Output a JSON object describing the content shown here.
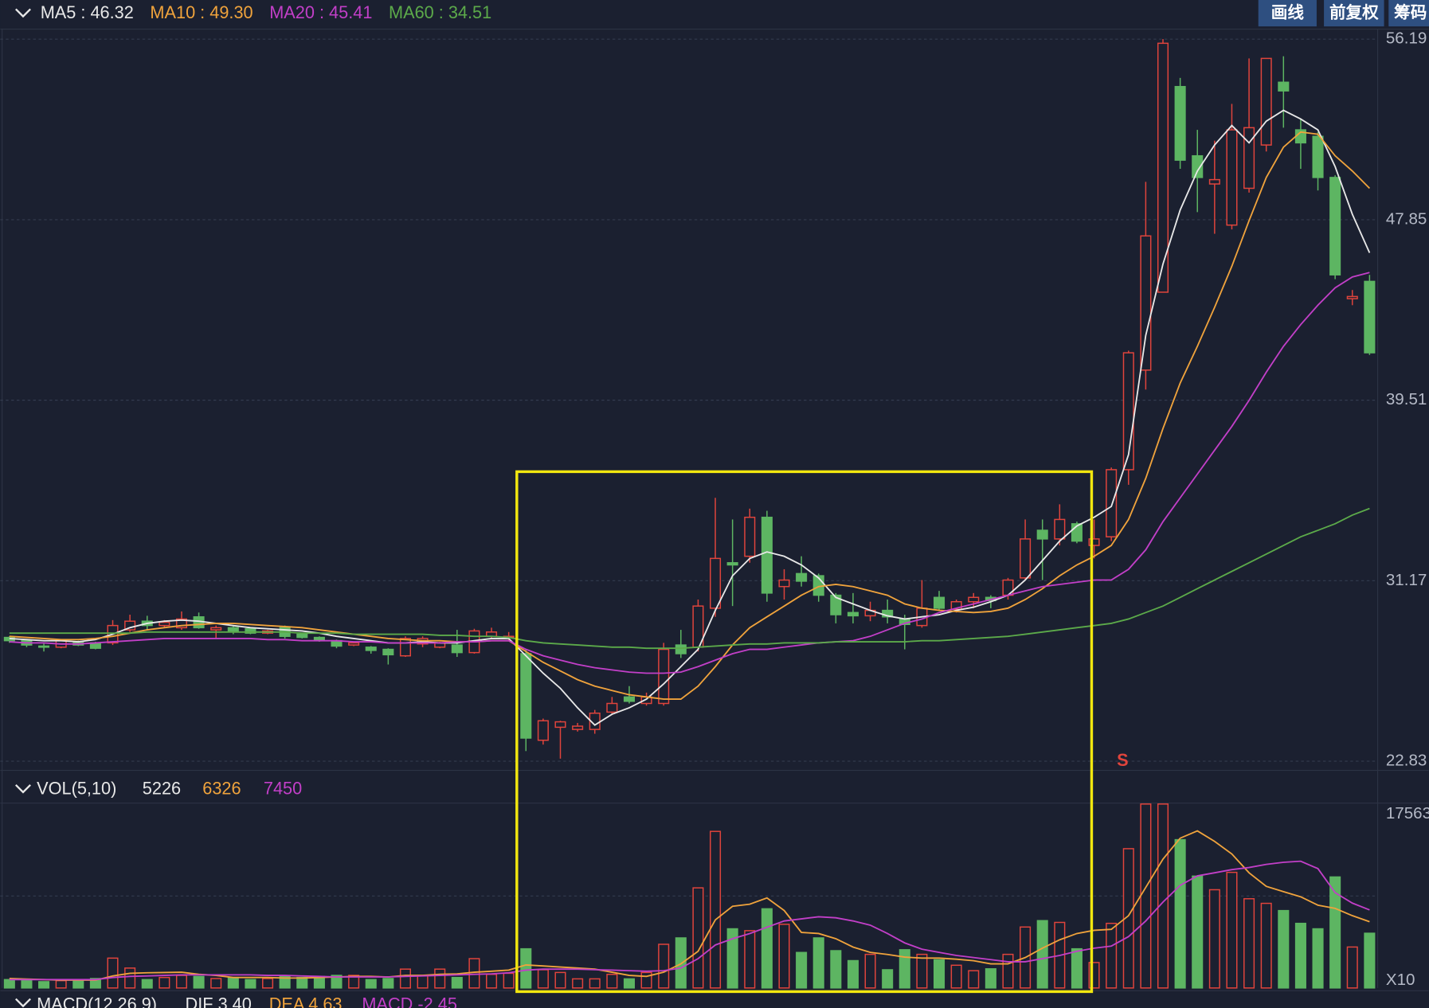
{
  "chart_data": [
    {
      "type": "candlestick",
      "open": [
        28.55,
        28.4,
        28.15,
        28.1,
        28.35,
        28.3,
        28.3,
        28.9,
        29.3,
        29.1,
        29.0,
        29.5,
        28.9,
        29.0,
        28.95,
        28.75,
        29.0,
        28.7,
        28.55,
        28.4,
        28.2,
        28.1,
        28.0,
        27.7,
        28.25,
        28.1,
        28.2,
        27.85,
        28.6,
        28.55,
        27.8,
        23.8,
        24.4,
        24.3,
        24.3,
        25.1,
        25.8,
        25.5,
        25.5,
        28.2,
        28.1,
        29.9,
        32.0,
        32.3,
        34.1,
        30.9,
        31.5,
        31.4,
        30.5,
        29.7,
        29.55,
        29.8,
        29.4,
        29.1,
        30.4,
        29.85,
        30.2,
        30.4,
        30.5,
        31.3,
        33.5,
        33.1,
        33.8,
        32.8,
        33.2,
        36.3,
        40.9,
        44.5,
        54.0,
        50.8,
        49.5,
        47.6,
        49.3,
        51.3,
        54.2,
        52.0,
        51.7,
        49.8,
        44.2,
        45.0
      ],
      "high": [
        28.6,
        28.45,
        28.3,
        28.45,
        28.4,
        28.35,
        29.35,
        29.6,
        29.55,
        29.35,
        29.75,
        29.7,
        29.1,
        29.1,
        29.0,
        28.9,
        29.1,
        28.75,
        28.6,
        28.45,
        28.35,
        28.15,
        28.05,
        28.6,
        28.6,
        28.35,
        28.9,
        28.95,
        29.0,
        28.8,
        28.0,
        24.8,
        24.7,
        24.6,
        25.2,
        25.8,
        26.3,
        26.0,
        28.3,
        28.9,
        30.3,
        35.0,
        34.0,
        34.5,
        34.4,
        31.7,
        32.3,
        31.5,
        30.6,
        30.6,
        30.2,
        30.3,
        29.6,
        31.2,
        30.7,
        30.3,
        30.6,
        30.5,
        31.3,
        34.0,
        34.0,
        34.7,
        33.9,
        34.0,
        36.4,
        41.8,
        49.6,
        56.19,
        54.4,
        52.0,
        51.5,
        53.2,
        55.3,
        55.3,
        55.4,
        52.5,
        51.9,
        49.9,
        44.6,
        45.3
      ],
      "low": [
        28.3,
        28.1,
        27.9,
        28.05,
        28.15,
        28.0,
        28.2,
        28.8,
        28.9,
        29.0,
        28.9,
        28.95,
        28.5,
        28.7,
        28.7,
        28.7,
        28.5,
        28.5,
        28.35,
        28.05,
        28.15,
        27.8,
        27.3,
        27.65,
        28.1,
        28.05,
        27.65,
        27.8,
        28.5,
        28.4,
        23.3,
        23.6,
        22.95,
        24.2,
        24.1,
        25.0,
        25.5,
        25.4,
        25.4,
        27.6,
        27.9,
        29.5,
        30.0,
        32.0,
        30.2,
        30.3,
        30.9,
        30.2,
        29.2,
        29.2,
        29.3,
        29.2,
        28.0,
        29.0,
        29.8,
        29.7,
        29.9,
        29.9,
        30.3,
        31.2,
        31.2,
        32.8,
        32.9,
        32.2,
        33.0,
        35.6,
        40.0,
        44.5,
        50.2,
        48.2,
        47.2,
        47.4,
        49.1,
        51.0,
        52.1,
        50.2,
        49.2,
        45.1,
        43.9,
        41.6
      ],
      "close": [
        28.4,
        28.2,
        28.12,
        28.4,
        28.2,
        28.05,
        29.1,
        29.3,
        29.1,
        29.25,
        29.4,
        29.0,
        29.0,
        28.85,
        28.75,
        28.85,
        28.6,
        28.55,
        28.4,
        28.15,
        28.3,
        27.95,
        27.75,
        28.5,
        28.5,
        28.3,
        27.85,
        28.85,
        28.8,
        28.6,
        23.9,
        24.7,
        24.65,
        24.45,
        25.05,
        25.5,
        25.6,
        25.8,
        28.0,
        27.8,
        30.0,
        32.2,
        31.9,
        34.1,
        30.6,
        31.2,
        31.15,
        30.5,
        29.6,
        29.55,
        29.8,
        29.5,
        29.15,
        29.9,
        29.9,
        30.2,
        30.4,
        30.25,
        31.2,
        33.1,
        33.1,
        34.0,
        33.0,
        33.1,
        36.3,
        41.7,
        47.1,
        56.0,
        50.6,
        49.8,
        49.7,
        52.0,
        52.1,
        55.3,
        53.8,
        51.4,
        49.8,
        45.3,
        44.3,
        41.7
      ],
      "up_color": "#e0443c",
      "down_color": "#5db562",
      "series": [
        {
          "name": "MA5 : 46.32",
          "color": "#e8e8e8",
          "values": [
            28.5,
            28.45,
            28.4,
            28.4,
            28.35,
            28.45,
            28.7,
            29.0,
            29.2,
            29.3,
            29.35,
            29.3,
            29.2,
            29.1,
            29.0,
            28.95,
            28.9,
            28.85,
            28.75,
            28.6,
            28.5,
            28.4,
            28.3,
            28.3,
            28.35,
            28.3,
            28.3,
            28.4,
            28.5,
            28.5,
            27.7,
            26.9,
            26.2,
            25.3,
            24.5,
            25.0,
            25.3,
            25.7,
            26.4,
            27.2,
            28.0,
            29.8,
            31.4,
            32.2,
            32.5,
            32.3,
            31.9,
            31.3,
            30.4,
            30.1,
            29.8,
            29.55,
            29.4,
            29.5,
            29.6,
            29.8,
            29.95,
            30.2,
            30.5,
            31.2,
            32.1,
            33.0,
            33.7,
            34.1,
            34.6,
            37.0,
            42.5,
            45.8,
            48.3,
            50.1,
            51.3,
            52.2,
            51.4,
            52.4,
            52.9,
            52.5,
            52.0,
            50.3,
            48.1,
            46.32
          ]
        },
        {
          "name": "MA10 : 49.30",
          "color": "#f0a33c",
          "values": [
            28.6,
            28.55,
            28.5,
            28.45,
            28.45,
            28.5,
            28.6,
            28.75,
            28.9,
            29.0,
            29.1,
            29.15,
            29.2,
            29.2,
            29.15,
            29.1,
            29.05,
            29.0,
            28.9,
            28.8,
            28.7,
            28.6,
            28.5,
            28.45,
            28.4,
            28.4,
            28.35,
            28.35,
            28.4,
            28.4,
            27.9,
            27.4,
            27.0,
            26.6,
            26.3,
            26.1,
            25.9,
            25.8,
            25.7,
            25.7,
            26.3,
            27.2,
            28.2,
            29.0,
            29.5,
            30.0,
            30.5,
            30.9,
            31.0,
            30.9,
            30.7,
            30.5,
            30.1,
            29.9,
            29.8,
            29.75,
            29.7,
            29.75,
            29.9,
            30.3,
            30.8,
            31.4,
            31.9,
            32.3,
            32.8,
            34.0,
            35.9,
            38.2,
            40.3,
            42.0,
            43.8,
            45.7,
            47.8,
            49.8,
            51.2,
            51.9,
            51.8,
            50.8,
            50.1,
            49.3
          ]
        },
        {
          "name": "MA20 : 45.41",
          "color": "#c23fc8",
          "values": [
            28.35,
            28.3,
            28.3,
            28.25,
            28.25,
            28.3,
            28.35,
            28.4,
            28.45,
            28.5,
            28.5,
            28.5,
            28.5,
            28.5,
            28.5,
            28.45,
            28.45,
            28.4,
            28.4,
            28.4,
            28.35,
            28.35,
            28.3,
            28.3,
            28.3,
            28.3,
            28.35,
            28.35,
            28.4,
            28.4,
            28.0,
            27.7,
            27.5,
            27.3,
            27.15,
            27.05,
            26.95,
            26.9,
            26.9,
            26.95,
            27.2,
            27.5,
            27.8,
            28.0,
            28.0,
            28.1,
            28.2,
            28.3,
            28.35,
            28.4,
            28.6,
            28.9,
            29.2,
            29.4,
            29.7,
            29.9,
            30.1,
            30.3,
            30.5,
            30.7,
            30.9,
            31.0,
            31.1,
            31.2,
            31.2,
            31.7,
            32.6,
            33.9,
            35.0,
            36.1,
            37.2,
            38.3,
            39.5,
            40.8,
            42.0,
            43.0,
            43.9,
            44.7,
            45.2,
            45.41
          ]
        },
        {
          "name": "MA60 : 34.51",
          "color": "#5caa4a",
          "values": [
            28.75,
            28.75,
            28.75,
            28.75,
            28.75,
            28.75,
            28.75,
            28.75,
            28.8,
            28.8,
            28.8,
            28.8,
            28.8,
            28.8,
            28.8,
            28.8,
            28.8,
            28.75,
            28.75,
            28.75,
            28.7,
            28.7,
            28.7,
            28.7,
            28.7,
            28.65,
            28.65,
            28.6,
            28.6,
            28.55,
            28.4,
            28.3,
            28.25,
            28.2,
            28.15,
            28.1,
            28.1,
            28.05,
            28.05,
            28.05,
            28.1,
            28.15,
            28.2,
            28.25,
            28.25,
            28.3,
            28.3,
            28.3,
            28.35,
            28.35,
            28.35,
            28.35,
            28.35,
            28.4,
            28.4,
            28.45,
            28.5,
            28.55,
            28.6,
            28.7,
            28.8,
            28.9,
            29.0,
            29.1,
            29.2,
            29.4,
            29.7,
            30.0,
            30.4,
            30.8,
            31.2,
            31.6,
            32.0,
            32.4,
            32.8,
            33.2,
            33.5,
            33.8,
            34.2,
            34.51
          ]
        }
      ],
      "ylim": [
        22.83,
        56.19
      ],
      "yticks": [
        56.19,
        47.85,
        39.51,
        31.17,
        22.83
      ],
      "grid": true,
      "annotations": [
        {
          "text": "S"
        }
      ]
    },
    {
      "type": "bar",
      "title": "VOL(5,10)",
      "values": [
        800,
        700,
        600,
        700,
        650,
        900,
        2850,
        1900,
        800,
        1000,
        1200,
        1100,
        900,
        1000,
        800,
        900,
        1100,
        1000,
        1100,
        1200,
        1200,
        800,
        900,
        1800,
        1200,
        1800,
        1000,
        2800,
        1300,
        1400,
        3740,
        1740,
        1480,
        870,
        870,
        1300,
        870,
        1480,
        4170,
        4780,
        9560,
        14950,
        5650,
        5470,
        7560,
        6080,
        3390,
        4780,
        3560,
        2610,
        3210,
        1740,
        3650,
        3210,
        2690,
        2170,
        1650,
        1830,
        3210,
        5820,
        6430,
        6260,
        3740,
        2430,
        6170,
        13300,
        17563,
        17563,
        14160,
        10680,
        9380,
        11040,
        8520,
        8080,
        7390,
        6170,
        5650,
        10600,
        3910,
        5226
      ],
      "series": [
        {
          "color": "#f0a33c",
          "values": [
            900,
            850,
            800,
            750,
            750,
            750,
            1150,
            1400,
            1450,
            1480,
            1500,
            1300,
            1200,
            1000,
            1000,
            1000,
            950,
            950,
            1000,
            1050,
            1100,
            1100,
            1050,
            1200,
            1200,
            1300,
            1350,
            1500,
            1600,
            1700,
            2200,
            2100,
            2000,
            1900,
            1800,
            1500,
            1200,
            1100,
            1500,
            2300,
            3500,
            6500,
            7800,
            8000,
            8600,
            7400,
            5300,
            5200,
            4700,
            3900,
            3400,
            3200,
            2950,
            2850,
            2850,
            2750,
            2600,
            2300,
            2300,
            2900,
            3800,
            4600,
            5200,
            5500,
            5600,
            6900,
            9600,
            12300,
            14300,
            15000,
            14000,
            12800,
            11000,
            9700,
            9200,
            8700,
            7900,
            7600,
            6900,
            6326
          ]
        },
        {
          "color": "#c23fc8",
          "values": [
            800,
            800,
            800,
            800,
            800,
            800,
            1000,
            1100,
            1150,
            1200,
            1250,
            1250,
            1250,
            1250,
            1250,
            1200,
            1200,
            1150,
            1100,
            1050,
            1050,
            1050,
            1050,
            1100,
            1150,
            1200,
            1250,
            1300,
            1350,
            1450,
            1700,
            1800,
            1800,
            1800,
            1750,
            1700,
            1650,
            1600,
            1650,
            1900,
            2800,
            4100,
            4700,
            5200,
            5800,
            6400,
            6600,
            6800,
            6700,
            6400,
            6000,
            5200,
            4300,
            3700,
            3400,
            3100,
            2900,
            2700,
            2500,
            2500,
            2800,
            3100,
            3500,
            3800,
            4000,
            4900,
            6400,
            8200,
            9800,
            10700,
            11000,
            11300,
            11500,
            11800,
            12000,
            12100,
            11400,
            9100,
            8100,
            7450
          ]
        }
      ],
      "ylim": [
        0,
        17563
      ],
      "yticks": [
        17563,
        {
          "value": 0,
          "label": "X10"
        }
      ]
    }
  ],
  "macd_panel": {
    "title": "MACD(12,26,9)",
    "dif": "DIF 3.40",
    "dea": "DEA 4.63",
    "macd": "MACD -2.45"
  },
  "toolbar": {
    "buttons": [
      "画线",
      "前复权",
      "筹码"
    ]
  }
}
